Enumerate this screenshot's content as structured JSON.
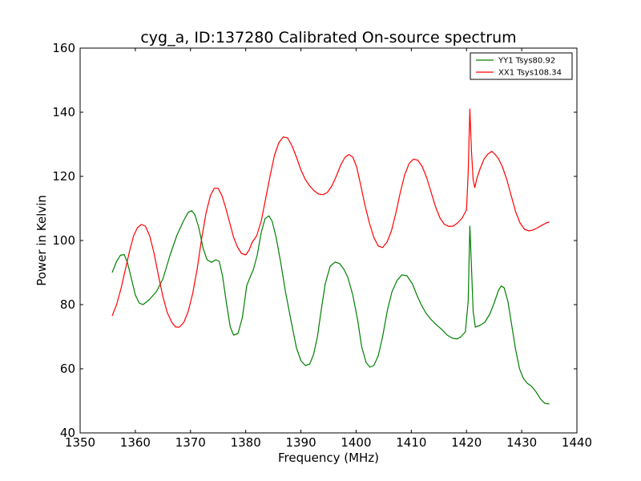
{
  "chart_data": {
    "type": "line",
    "title": "cyg_a, ID:137280 Calibrated On-source spectrum",
    "xlabel": "Frequency (MHz)",
    "ylabel": "Power in Kelvin",
    "xlim": [
      1350,
      1440
    ],
    "ylim": [
      40,
      160
    ],
    "xticks": [
      1350,
      1360,
      1370,
      1380,
      1390,
      1400,
      1410,
      1420,
      1430,
      1440
    ],
    "yticks": [
      40,
      60,
      80,
      100,
      120,
      140,
      160
    ],
    "xtick_labels": [
      "1350",
      "1360",
      "1370",
      "1380",
      "1390",
      "1400",
      "1410",
      "1420",
      "1430",
      "1440"
    ],
    "ytick_labels": [
      "40",
      "60",
      "80",
      "100",
      "120",
      "140",
      "160"
    ],
    "legend_position": "top-right",
    "grid": false,
    "series": [
      {
        "name": "YY1 Tsys80.92",
        "color": "#008000",
        "x": [
          1355.8,
          1356.6,
          1357.3,
          1358.0,
          1358.6,
          1359.3,
          1360.0,
          1360.7,
          1361.4,
          1362.5,
          1363.8,
          1365.0,
          1366.3,
          1367.5,
          1368.7,
          1369.6,
          1370.2,
          1370.8,
          1371.5,
          1372.3,
          1373.0,
          1373.8,
          1374.6,
          1375.2,
          1375.8,
          1376.5,
          1377.2,
          1377.8,
          1378.6,
          1379.4,
          1380.2,
          1380.9,
          1381.4,
          1382.1,
          1382.8,
          1383.5,
          1384.2,
          1384.8,
          1385.5,
          1386.3,
          1387.2,
          1388.2,
          1389.2,
          1390.0,
          1390.8,
          1391.6,
          1392.3,
          1393.0,
          1393.6,
          1394.4,
          1395.3,
          1396.2,
          1397.0,
          1397.8,
          1398.5,
          1399.4,
          1400.3,
          1401.0,
          1401.8,
          1402.5,
          1403.2,
          1404.0,
          1404.8,
          1405.7,
          1406.5,
          1407.4,
          1408.3,
          1409.2,
          1410.2,
          1411.0,
          1411.8,
          1412.6,
          1413.5,
          1414.5,
          1415.5,
          1416.5,
          1417.5,
          1418.3,
          1419.0,
          1419.8,
          1420.3,
          1420.6,
          1420.9,
          1421.2,
          1421.6,
          1422.4,
          1423.3,
          1424.2,
          1425.0,
          1425.8,
          1426.3,
          1426.8,
          1427.5,
          1428.2,
          1428.9,
          1429.6,
          1430.3,
          1431.0,
          1431.8,
          1432.6,
          1433.4,
          1434.2,
          1435.0
        ],
        "values": [
          90.0,
          93.5,
          95.4,
          95.6,
          93.0,
          88.0,
          83.0,
          80.5,
          80.0,
          81.5,
          84.0,
          88.0,
          95.5,
          101.5,
          106.0,
          108.8,
          109.3,
          108.0,
          104.0,
          97.5,
          94.0,
          93.2,
          94.0,
          93.5,
          89.0,
          80.5,
          73.0,
          70.5,
          71.0,
          76.0,
          86.0,
          89.0,
          91.0,
          95.5,
          102.5,
          106.8,
          107.7,
          106.0,
          101.0,
          93.5,
          84.0,
          75.0,
          66.5,
          62.5,
          61.0,
          61.5,
          64.5,
          70.0,
          77.5,
          86.5,
          92.0,
          93.3,
          92.8,
          91.0,
          88.5,
          83.0,
          75.0,
          67.0,
          62.0,
          60.5,
          61.0,
          64.0,
          70.0,
          78.5,
          84.0,
          87.5,
          89.3,
          89.0,
          86.5,
          83.0,
          80.0,
          77.5,
          75.5,
          73.8,
          72.3,
          70.5,
          69.5,
          69.3,
          70.0,
          71.5,
          81.0,
          104.5,
          92.0,
          78.0,
          73.0,
          73.5,
          74.5,
          77.0,
          80.5,
          84.5,
          85.8,
          85.3,
          81.0,
          73.5,
          66.0,
          60.0,
          57.0,
          55.5,
          54.5,
          52.8,
          50.6,
          49.2,
          49.0
        ]
      },
      {
        "name": "XX1 Tsys108.34",
        "color": "#ff0000",
        "x": [
          1355.8,
          1356.6,
          1357.4,
          1358.2,
          1359.0,
          1359.7,
          1360.4,
          1361.1,
          1361.8,
          1362.6,
          1363.4,
          1364.2,
          1365.0,
          1365.8,
          1366.6,
          1367.3,
          1368.0,
          1368.8,
          1369.6,
          1370.4,
          1371.2,
          1372.0,
          1372.8,
          1373.6,
          1374.3,
          1375.0,
          1375.7,
          1376.4,
          1377.1,
          1377.8,
          1378.5,
          1379.2,
          1380.0,
          1380.6,
          1381.2,
          1382.0,
          1382.8,
          1383.6,
          1384.4,
          1385.2,
          1386.0,
          1386.8,
          1387.6,
          1388.4,
          1389.2,
          1390.0,
          1390.8,
          1391.6,
          1392.4,
          1393.2,
          1394.0,
          1394.8,
          1395.6,
          1396.4,
          1397.2,
          1398.0,
          1398.7,
          1399.4,
          1400.1,
          1400.8,
          1401.6,
          1402.4,
          1403.2,
          1404.0,
          1404.8,
          1405.6,
          1406.4,
          1407.2,
          1408.0,
          1408.8,
          1409.6,
          1410.4,
          1411.2,
          1412.0,
          1412.8,
          1413.6,
          1414.4,
          1415.2,
          1416.0,
          1416.8,
          1417.6,
          1418.4,
          1419.2,
          1420.0,
          1420.3,
          1420.6,
          1420.9,
          1421.2,
          1421.5,
          1421.9,
          1422.5,
          1423.2,
          1423.9,
          1424.6,
          1425.2,
          1425.8,
          1426.5,
          1427.3,
          1428.1,
          1428.9,
          1429.7,
          1430.5,
          1431.3,
          1432.1,
          1432.9,
          1433.7,
          1434.5,
          1435.0
        ],
        "values": [
          76.5,
          80.0,
          85.0,
          91.0,
          97.0,
          101.5,
          104.0,
          105.0,
          104.5,
          101.5,
          96.0,
          89.0,
          82.5,
          77.5,
          74.5,
          73.0,
          73.0,
          74.5,
          78.0,
          83.5,
          91.0,
          100.5,
          108.5,
          114.0,
          116.3,
          116.3,
          114.0,
          110.0,
          105.5,
          101.0,
          98.0,
          96.0,
          95.5,
          97.0,
          99.5,
          101.5,
          106.0,
          113.0,
          120.0,
          126.5,
          130.5,
          132.3,
          132.0,
          129.5,
          126.0,
          122.0,
          119.0,
          117.0,
          115.5,
          114.5,
          114.3,
          115.0,
          117.0,
          120.0,
          123.5,
          126.0,
          126.8,
          126.0,
          123.0,
          117.5,
          111.0,
          105.5,
          101.0,
          98.3,
          97.8,
          99.5,
          103.0,
          108.5,
          115.0,
          120.5,
          124.0,
          125.4,
          125.0,
          123.0,
          119.5,
          115.0,
          110.5,
          107.0,
          105.0,
          104.4,
          104.5,
          105.5,
          107.0,
          109.5,
          121.0,
          141.0,
          128.0,
          119.0,
          116.5,
          119.5,
          122.5,
          125.5,
          127.0,
          127.8,
          126.8,
          125.5,
          123.0,
          119.0,
          114.0,
          109.0,
          105.5,
          103.5,
          103.0,
          103.3,
          104.0,
          104.8,
          105.5,
          105.8
        ]
      }
    ]
  }
}
